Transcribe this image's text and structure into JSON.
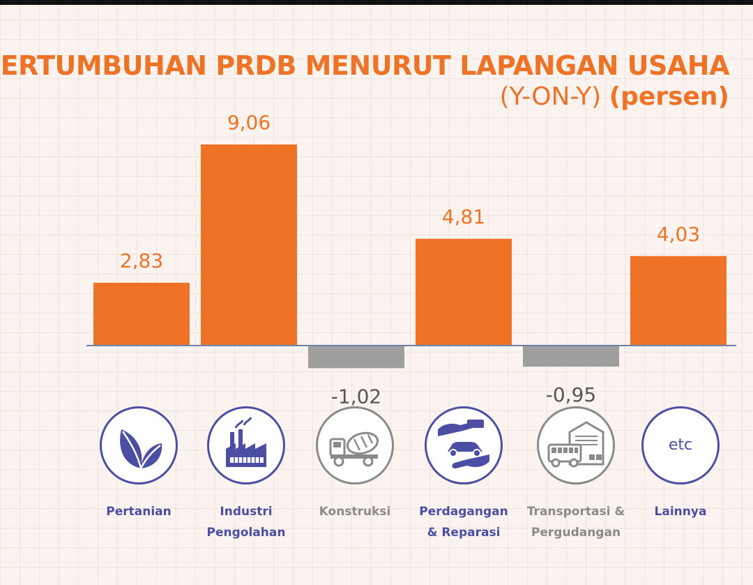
{
  "chart_data": {
    "type": "bar",
    "title": "PERTUMBUHAN PRDB MENURUT LAPANGAN USAHA",
    "subtitle_part1": "(Y-ON-Y)",
    "subtitle_part2": "(persen)",
    "categories": [
      "Pertanian",
      "Industri Pengolahan",
      "Konstruksi",
      "Perdagangan & Reparasi",
      "Transportasi & Pergudangan",
      "Lainnya"
    ],
    "values": [
      2.83,
      9.06,
      -1.02,
      4.81,
      -0.95,
      4.03
    ],
    "value_labels": [
      "2,83",
      "9,06",
      "-1,02",
      "4,81",
      "-0,95",
      "4,03"
    ],
    "xlabel": "",
    "ylabel": "",
    "colors": {
      "positive": "#ee7326",
      "negative": "#9e9e9e",
      "axis": "#6b82a8",
      "icon_active": "#4b4ea3",
      "icon_muted": "#8a8a8a"
    }
  },
  "icons": [
    {
      "name": "leaf-icon",
      "label": "Pertanian",
      "muted": false
    },
    {
      "name": "factory-icon",
      "label": "Industri\nPengolahan",
      "muted": false
    },
    {
      "name": "cement-truck-icon",
      "label": "Konstruksi",
      "muted": true
    },
    {
      "name": "hands-car-icon",
      "label": "Perdagangan\n& Reparasi",
      "muted": false
    },
    {
      "name": "bus-warehouse-icon",
      "label": "Transportasi &\nPergudangan",
      "muted": true
    },
    {
      "name": "etc-icon",
      "label": "Lainnya",
      "muted": false
    }
  ],
  "etc_text": "etc"
}
